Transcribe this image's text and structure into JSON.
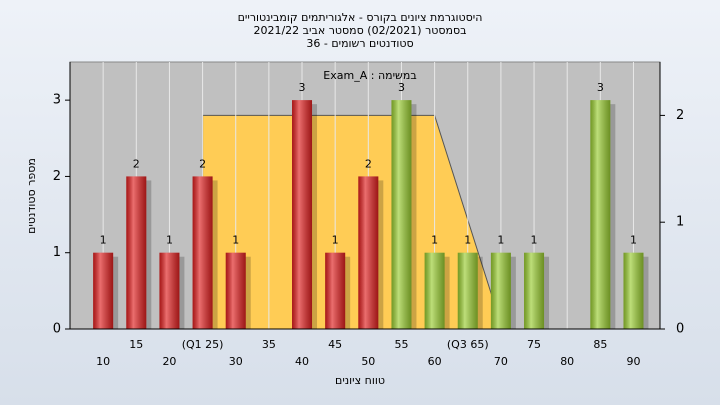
{
  "chart_data": {
    "type": "bar",
    "title": "היסטוגרמת ציונים בקורס - אלגוריתמים קומבינטוריים",
    "subtitle": "בסמסטר  (02/2021)  סמסטר אביב 2021/22",
    "subtitle2": "סטודנטים רשומים - 36",
    "annotation": "Exam_A : במשימה",
    "x_label": "טווח ציונים",
    "y_label": "מספר סטודנטים",
    "x": [
      10,
      15,
      20,
      25,
      30,
      40,
      45,
      50,
      55,
      60,
      65,
      70,
      75,
      85,
      90
    ],
    "values": [
      1,
      2,
      1,
      2,
      1,
      3,
      1,
      2,
      3,
      1,
      1,
      1,
      1,
      3,
      1
    ],
    "colors": [
      "#e02020",
      "#e02020",
      "#e02020",
      "#e02020",
      "#e02020",
      "#e02020",
      "#e02020",
      "#e02020",
      "#9acd32",
      "#9acd32",
      "#9acd32",
      "#9acd32",
      "#9acd32",
      "#9acd32",
      "#9acd32"
    ],
    "area": {
      "axis": "y2",
      "color": "#ffcc55",
      "x": [
        25,
        60,
        68.7
      ],
      "values": [
        2,
        2,
        0.3
      ]
    },
    "xlim": [
      5,
      94
    ],
    "xticks": [
      10,
      15,
      20,
      {
        "value": 25,
        "label": "(Q1 25)"
      },
      30,
      35,
      40,
      45,
      50,
      55,
      60,
      {
        "value": 65,
        "label": "(Q3 65)"
      },
      70,
      75,
      80,
      85,
      90
    ],
    "ylim": [
      0,
      3.5
    ],
    "yticks": [
      0,
      1,
      2,
      3
    ],
    "y2lim": [
      0,
      2.5
    ],
    "y2ticks": [
      0,
      1,
      2
    ],
    "grid": true
  }
}
